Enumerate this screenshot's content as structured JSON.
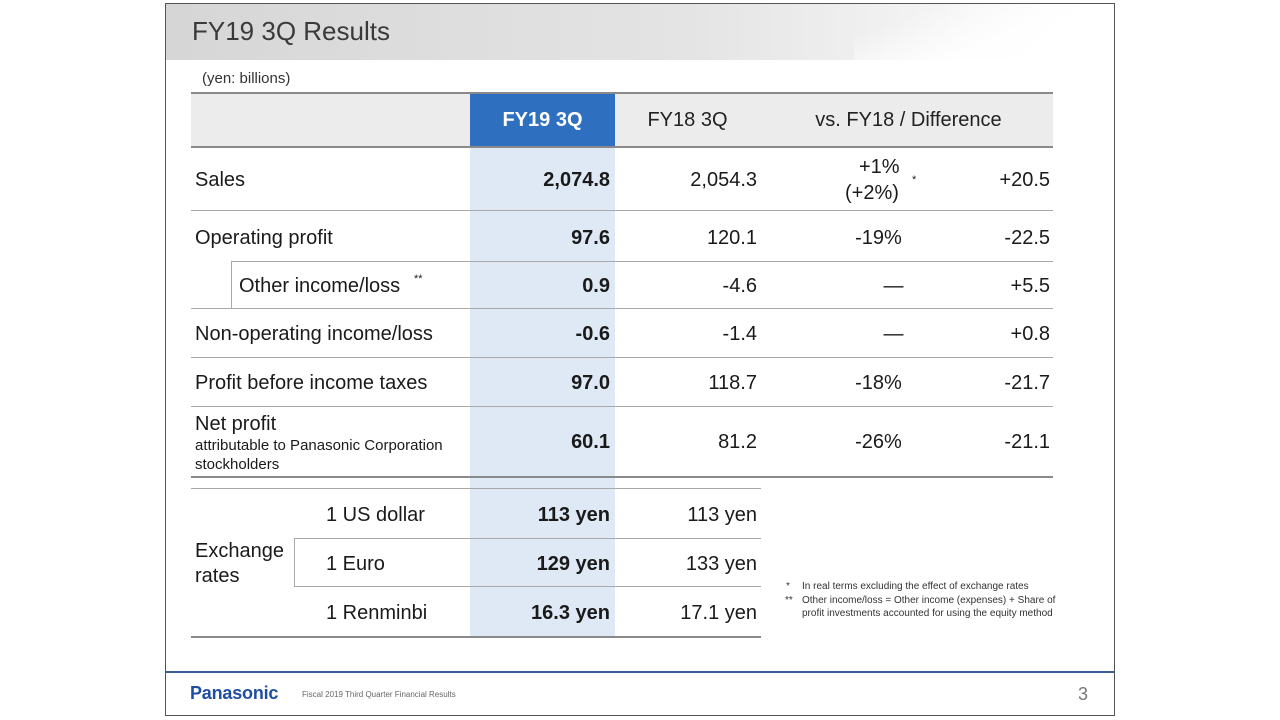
{
  "title": "FY19 3Q Results",
  "unit_note": "(yen: billions)",
  "columns": {
    "current": "FY19 3Q",
    "previous": "FY18 3Q",
    "vs": "vs. FY18 / Difference"
  },
  "rows": [
    {
      "label": "Sales",
      "current": "2,074.8",
      "previous": "2,054.3",
      "pct": "+1%",
      "pct_sub": "(+2%)",
      "pct_mark": "*",
      "diff": "+20.5"
    },
    {
      "label": "Operating profit",
      "current": "97.6",
      "previous": "120.1",
      "pct": "-19%",
      "diff": "-22.5"
    },
    {
      "label": "Other income/loss",
      "label_mark": "**",
      "current": "0.9",
      "previous": "-4.6",
      "pct": "―",
      "diff": "+5.5"
    },
    {
      "label": "Non-operating income/loss",
      "current": "-0.6",
      "previous": "-1.4",
      "pct": "―",
      "diff": "+0.8"
    },
    {
      "label": "Profit before income taxes",
      "current": "97.0",
      "previous": "118.7",
      "pct": "-18%",
      "diff": "-21.7"
    },
    {
      "label": "Net profit",
      "sublabel": "attributable to Panasonic Corporation stockholders",
      "current": "60.1",
      "previous": "81.2",
      "pct": "-26%",
      "diff": "-21.1"
    }
  ],
  "exchange": {
    "label": "Exchange rates",
    "rows": [
      {
        "currency": "1 US dollar",
        "current": "113 yen",
        "previous": "113 yen"
      },
      {
        "currency": "1 Euro",
        "current": "129 yen",
        "previous": "133 yen"
      },
      {
        "currency": "1 Renminbi",
        "current": "16.3 yen",
        "previous": "17.1 yen"
      }
    ]
  },
  "notes": [
    {
      "mark": "*",
      "text": "In real terms excluding the effect of exchange rates"
    },
    {
      "mark": "**",
      "text": "Other income/loss = Other income (expenses) + Share of profit investments accounted for using the equity method"
    }
  ],
  "footer": {
    "logo": "Panasonic",
    "text": "Fiscal 2019 Third Quarter Financial Results",
    "page": "3"
  }
}
